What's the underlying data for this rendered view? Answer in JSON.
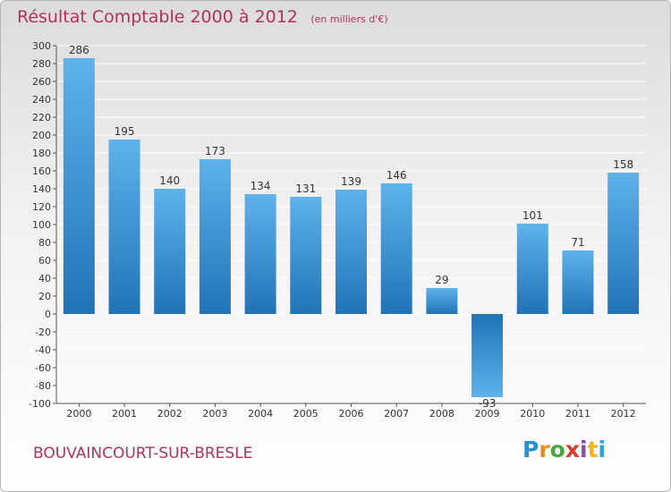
{
  "colors": {
    "bar_light": "#5fb2ea",
    "bar_dark": "#2273b6",
    "accent": "#b1325a",
    "grid": "#ffffff"
  },
  "place_name": "BOUVAINCOURT-SUR-BRESLE",
  "logo": {
    "letters": [
      "P",
      "r",
      "o",
      "x",
      "i",
      "t",
      "i"
    ]
  },
  "chart_data": {
    "type": "bar",
    "title": "Résultat Comptable 2000 à 2012",
    "subtitle": "(en milliers d'€)",
    "categories": [
      "2000",
      "2001",
      "2002",
      "2003",
      "2004",
      "2005",
      "2006",
      "2007",
      "2008",
      "2009",
      "2010",
      "2011",
      "2012"
    ],
    "values": [
      286,
      195,
      140,
      173,
      134,
      131,
      139,
      146,
      29,
      -93,
      101,
      71,
      158
    ],
    "ylim": [
      -100,
      300
    ],
    "yticks": [
      -100,
      -80,
      -60,
      -40,
      -20,
      0,
      20,
      40,
      60,
      80,
      100,
      120,
      140,
      160,
      180,
      200,
      220,
      240,
      260,
      280,
      300
    ],
    "grid": true,
    "xlabel": "",
    "ylabel": ""
  }
}
